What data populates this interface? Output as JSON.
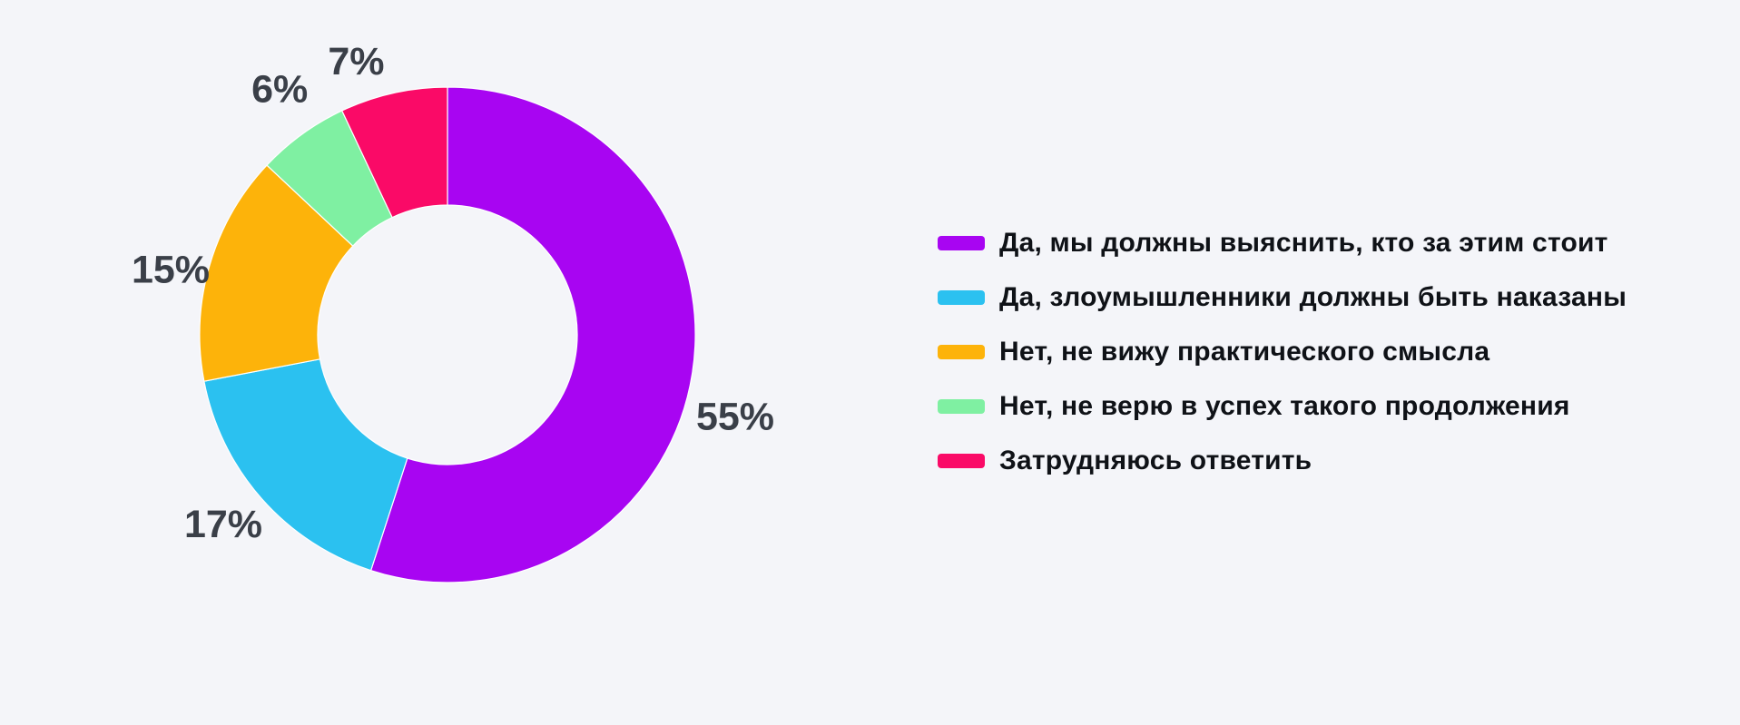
{
  "chart_data": {
    "type": "pie",
    "variant": "donut",
    "title": "",
    "direction": "clockwise",
    "start_angle_deg": 0,
    "legend_position": "right",
    "categories": [
      "Да, мы должны выяснить, кто за этим стоит",
      "Да, злоумышленники должны быть наказаны",
      "Нет, не вижу практического смысла",
      "Нет, не верю в успех такого продолжения",
      "Затрудняюсь ответить"
    ],
    "values": [
      55,
      17,
      15,
      6,
      7
    ],
    "labels": [
      "55%",
      "17%",
      "15%",
      "6%",
      "7%"
    ],
    "colors": [
      "#A805F2",
      "#2BC1F0",
      "#FDB30A",
      "#7FF0A2",
      "#FA0A67"
    ],
    "label_color": "#3A3F48",
    "background_color": "#F4F5F9"
  }
}
